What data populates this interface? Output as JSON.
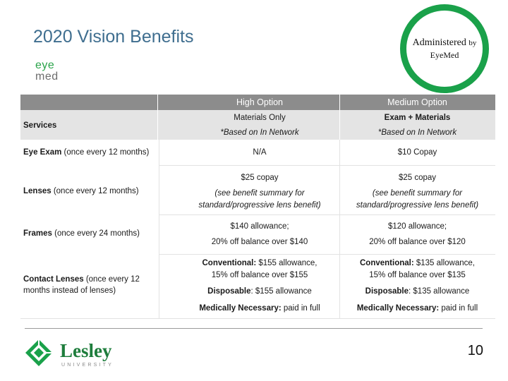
{
  "slide": {
    "title": "2020 Vision Benefits",
    "page_number": "10"
  },
  "badge": {
    "administered": "Administered",
    "by": "by",
    "company": "EyeMed",
    "ring_color": "#1aa14a"
  },
  "logos": {
    "eyemed_line1": "eye",
    "eyemed_line2": "med",
    "lesley_name": "Lesley",
    "lesley_sub": "UNIVERSITY",
    "lesley_icon": "lesley-diamond-logo-icon"
  },
  "table": {
    "header": {
      "services_label": "Services",
      "high_option": "High Option",
      "medium_option": "Medium Option",
      "high_plan": "Materials Only",
      "medium_plan": "Exam + Materials",
      "high_network": "*Based on In Network",
      "medium_network": "*Based on In Network"
    },
    "rows": {
      "eye_exam": {
        "label_bold": "Eye Exam",
        "label_rest": " (once every 12 months)",
        "high": "N/A",
        "medium": "$10 Copay"
      },
      "lenses": {
        "label_bold": "Lenses",
        "label_rest": " (once every 12 months)",
        "high_line1": "$25 copay",
        "medium_line1": "$25 copay",
        "high_note1": "(see benefit summary for",
        "high_note2": "standard/progressive lens benefit)",
        "medium_note1": "(see benefit summary for",
        "medium_note2": "standard/progressive lens benefit)"
      },
      "frames": {
        "label_bold": "Frames",
        "label_rest": " (once every 24 months)",
        "high_line1": "$140 allowance;",
        "high_line2": "20% off balance over $140",
        "medium_line1": "$120 allowance;",
        "medium_line2": "20% off balance over $120"
      },
      "contacts": {
        "label_bold": "Contact Lenses",
        "label_rest": " (once every 12",
        "label_line2": "months instead of lenses)",
        "conventional_label": "Conventional:",
        "high_conventional": " $155 allowance,",
        "high_conventional2": "15% off balance over $155",
        "medium_conventional": " $135 allowance,",
        "medium_conventional2": "15% off balance over $135",
        "disposable_label": "Disposable",
        "high_disposable": ": $155 allowance",
        "medium_disposable": ": $135 allowance",
        "medical_label": "Medically Necessary:",
        "medical_value": " paid in full"
      }
    }
  }
}
